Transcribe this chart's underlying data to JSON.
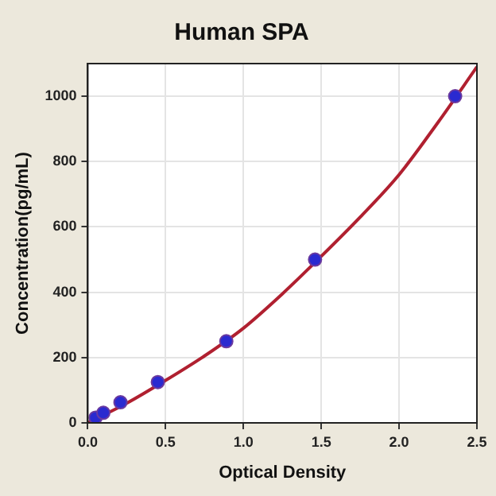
{
  "chart_data": {
    "type": "scatter",
    "title": "Human SPA",
    "xlabel": "Optical Density",
    "ylabel": "Concentration(pg/mL)",
    "x": [
      0.05,
      0.1,
      0.21,
      0.45,
      0.89,
      1.46,
      2.36
    ],
    "series": [
      {
        "color": "#2a2ad0",
        "values": [
          16,
          31,
          63,
          125,
          250,
          500,
          1000
        ],
        "marker": "circle"
      },
      {
        "type": "line",
        "color": "#b02030",
        "x": [
          0,
          0.25,
          0.5,
          0.75,
          1,
          1.25,
          1.5,
          1.75,
          2,
          2.25,
          2.5
        ],
        "values": [
          0,
          60,
          130,
          205,
          290,
          395,
          510,
          630,
          760,
          920,
          1090
        ],
        "marker": "none"
      }
    ],
    "xlim": [
      0,
      2.5
    ],
    "xticks": [
      {
        "value": 0,
        "label": "0.0"
      },
      0.5,
      {
        "value": 1,
        "label": "1.0"
      },
      1.5,
      {
        "value": 2,
        "label": "2.0"
      },
      2.5
    ],
    "ylim": [
      0,
      1100
    ],
    "yticks": [
      0,
      200,
      400,
      600,
      800,
      1000
    ],
    "grid": true,
    "legend": false
  }
}
